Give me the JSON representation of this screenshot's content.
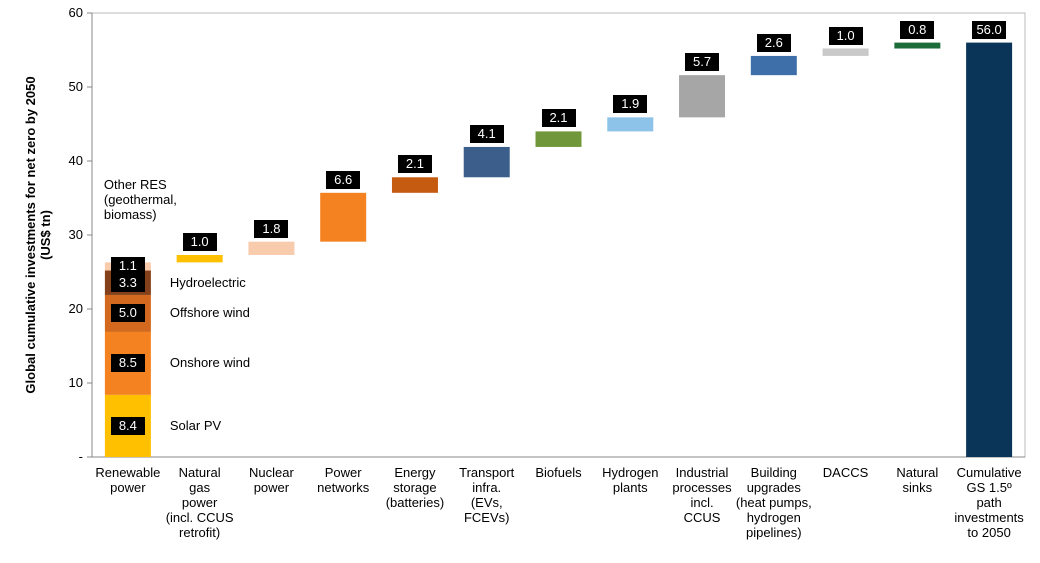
{
  "chart_data": {
    "type": "waterfall",
    "ylabel": "Global cumulative investments for net zero by 2050\n(US$ tn)",
    "categories": [
      "Renewable\npower",
      "Natural\ngas\npower\n(incl. CCUS\nretrofit)",
      "Nuclear\npower",
      "Power\nnetworks",
      "Energy\nstorage\n(batteries)",
      "Transport\ninfra.\n(EVs,\nFCEVs)",
      "Biofuels",
      "Hydrogen\nplants",
      "Industrial\nprocesses\nincl.\nCCUS",
      "Building\nupgrades\n(heat pumps,\nhydrogen\npipelines)",
      "DACCS",
      "Natural\nsinks",
      "Cumulative\nGS 1.5º\npath\ninvestments\nto 2050"
    ],
    "segments": [
      {
        "name": "Solar PV",
        "value": 8.4,
        "value_label": "8.4",
        "color": "#ffc000"
      },
      {
        "name": "Onshore wind",
        "value": 8.5,
        "value_label": "8.5",
        "color": "#f58220"
      },
      {
        "name": "Offshore wind",
        "value": 5.0,
        "value_label": "5.0",
        "color": "#d2691e"
      },
      {
        "name": "Hydroelectric",
        "value": 3.3,
        "value_label": "3.3",
        "color": "#84401a"
      },
      {
        "name": "Other RES\n(geothermal,\nbiomass)",
        "value": 1.1,
        "value_label": "1.1",
        "color": "#f8cbad"
      }
    ],
    "measure": [
      "stack",
      "relative",
      "relative",
      "relative",
      "relative",
      "relative",
      "relative",
      "relative",
      "relative",
      "relative",
      "relative",
      "relative",
      "total"
    ],
    "values": [
      null,
      1.0,
      1.8,
      6.6,
      2.1,
      4.1,
      2.1,
      1.9,
      5.7,
      2.6,
      1.0,
      0.8,
      56.0
    ],
    "value_labels": [
      null,
      "1.0",
      "1.8",
      "6.6",
      "2.1",
      "4.1",
      "2.1",
      "1.9",
      "5.7",
      "2.6",
      "1.0",
      "0.8",
      "56.0"
    ],
    "colors": [
      null,
      "#ffc000",
      "#f8cbad",
      "#f58220",
      "#c55a11",
      "#3b5f8a",
      "#70983a",
      "#8dc3e8",
      "#a6a6a6",
      "#3f6fa8",
      "#c9c9c9",
      "#1e6b3a",
      "#0b3558"
    ],
    "ylim": [
      0,
      60
    ],
    "yticks": [
      {
        "value": 0,
        "label": "-"
      },
      10,
      20,
      30,
      40,
      50,
      60
    ]
  }
}
